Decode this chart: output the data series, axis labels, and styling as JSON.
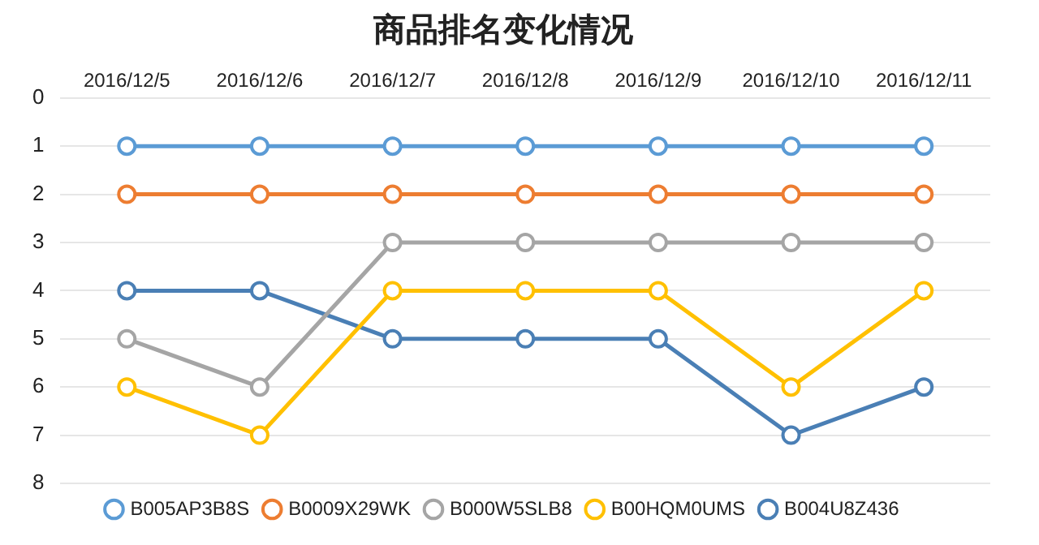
{
  "chart_data": {
    "type": "line",
    "title": "商品排名变化情况",
    "categories": [
      "2016/12/5",
      "2016/12/6",
      "2016/12/7",
      "2016/12/8",
      "2016/12/9",
      "2016/12/10",
      "2016/12/11"
    ],
    "series": [
      {
        "name": "B005AP3B8S",
        "color": "#5b9bd5",
        "values": [
          1,
          1,
          1,
          1,
          1,
          1,
          1
        ]
      },
      {
        "name": "B0009X29WK",
        "color": "#ed7d31",
        "values": [
          2,
          2,
          2,
          2,
          2,
          2,
          2
        ]
      },
      {
        "name": "B000W5SLB8",
        "color": "#a5a5a5",
        "values": [
          5,
          6,
          3,
          3,
          3,
          3,
          3
        ]
      },
      {
        "name": "B00HQM0UMS",
        "color": "#ffc000",
        "values": [
          6,
          7,
          4,
          4,
          4,
          6,
          4
        ]
      },
      {
        "name": "B004U8Z436",
        "color": "#4a7fb5",
        "values": [
          4,
          4,
          5,
          5,
          5,
          7,
          6
        ]
      }
    ],
    "ylim": [
      8,
      0
    ],
    "yticks": [
      0,
      1,
      2,
      3,
      4,
      5,
      6,
      7,
      8
    ],
    "grid": "y",
    "legend": "bottom",
    "marker": "circle",
    "line_style": "solid"
  }
}
